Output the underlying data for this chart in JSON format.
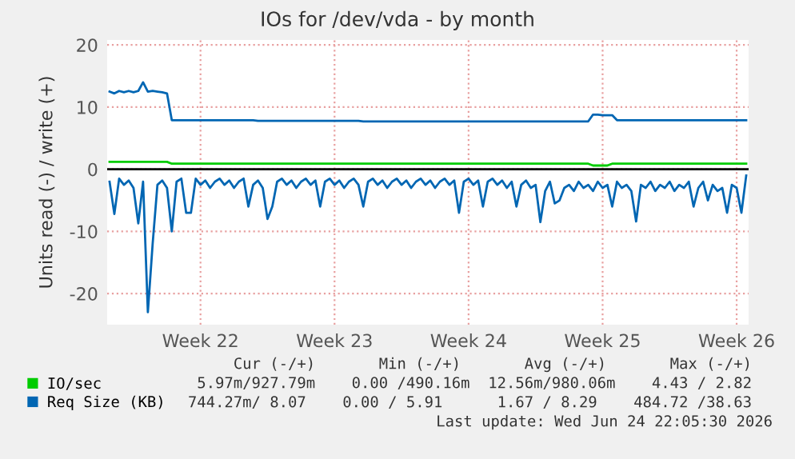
{
  "chart_data": {
    "type": "line",
    "title": "IOs for /dev/vda - by month",
    "ylabel": "Units read (-) / write (+)",
    "categories": [
      null,
      null,
      null,
      null,
      null,
      null,
      null,
      null,
      null,
      null,
      null,
      null,
      null,
      null,
      null,
      null,
      null,
      null,
      null,
      "Week 22",
      null,
      null,
      null,
      null,
      null,
      null,
      null,
      null,
      null,
      null,
      null,
      null,
      null,
      null,
      null,
      null,
      null,
      null,
      null,
      null,
      null,
      null,
      null,
      null,
      null,
      null,
      null,
      "Week 23",
      null,
      null,
      null,
      null,
      null,
      null,
      null,
      null,
      null,
      null,
      null,
      null,
      null,
      null,
      null,
      null,
      null,
      null,
      null,
      null,
      null,
      null,
      null,
      null,
      null,
      null,
      null,
      "Week 24",
      null,
      null,
      null,
      null,
      null,
      null,
      null,
      null,
      null,
      null,
      null,
      null,
      null,
      null,
      null,
      null,
      null,
      null,
      null,
      null,
      null,
      null,
      null,
      null,
      null,
      null,
      null,
      "Week 25",
      null,
      null,
      null,
      null,
      null,
      null,
      null,
      null,
      null,
      null,
      null,
      null,
      null,
      null,
      null,
      null,
      null,
      null,
      null,
      null,
      null,
      null,
      null,
      null,
      null,
      null,
      null,
      "Week 26",
      null,
      null
    ],
    "ylim": [
      -25,
      20.8
    ],
    "yticks": [
      -20,
      -10,
      0,
      10,
      20
    ],
    "grid": true,
    "legend": "bottom left",
    "ref_lines": [
      {
        "axis": "y",
        "value": 0,
        "color": "#000000"
      }
    ],
    "series": [
      {
        "name": "IO/sec",
        "color": "#00cc00",
        "values": [
          1.2,
          1.2,
          1.2,
          1.2,
          1.2,
          1.2,
          1.2,
          1.2,
          1.2,
          1.2,
          1.2,
          1.2,
          1.2,
          0.9,
          0.9,
          0.9,
          0.9,
          0.9,
          0.9,
          0.9,
          0.9,
          0.9,
          0.9,
          0.9,
          0.9,
          0.9,
          0.9,
          0.9,
          0.9,
          0.9,
          0.9,
          0.9,
          0.9,
          0.9,
          0.9,
          0.9,
          0.9,
          0.9,
          0.9,
          0.9,
          0.9,
          0.9,
          0.9,
          0.9,
          0.9,
          0.9,
          0.9,
          0.9,
          0.9,
          0.9,
          0.9,
          0.9,
          0.9,
          0.9,
          0.9,
          0.9,
          0.9,
          0.9,
          0.9,
          0.9,
          0.9,
          0.9,
          0.9,
          0.9,
          0.9,
          0.9,
          0.9,
          0.9,
          0.9,
          0.9,
          0.9,
          0.9,
          0.9,
          0.9,
          0.9,
          0.9,
          0.9,
          0.9,
          0.9,
          0.9,
          0.9,
          0.9,
          0.9,
          0.9,
          0.9,
          0.9,
          0.9,
          0.9,
          0.9,
          0.9,
          0.9,
          0.9,
          0.9,
          0.9,
          0.9,
          0.9,
          0.9,
          0.9,
          0.9,
          0.9,
          0.9,
          0.6,
          0.6,
          0.6,
          0.6,
          0.9,
          0.9,
          0.9,
          0.9,
          0.9,
          0.9,
          0.9,
          0.9,
          0.9,
          0.9,
          0.9,
          0.9,
          0.9,
          0.9,
          0.9,
          0.9,
          0.9,
          0.9,
          0.9,
          0.9,
          0.9,
          0.9,
          0.9,
          0.9,
          0.9,
          0.9,
          0.9,
          0.9,
          0.9
        ]
      },
      {
        "name": "Req Size (KB)",
        "color": "#0066b3",
        "values": [
          12.5,
          12.2,
          12.6,
          12.4,
          12.6,
          12.4,
          12.6,
          14,
          12.5,
          12.6,
          12.5,
          12.4,
          12.2,
          7.9,
          7.9,
          7.9,
          7.9,
          7.9,
          7.9,
          7.9,
          7.9,
          7.9,
          7.9,
          7.9,
          7.9,
          7.9,
          7.9,
          7.9,
          7.9,
          7.9,
          7.9,
          7.8,
          7.8,
          7.8,
          7.8,
          7.8,
          7.8,
          7.8,
          7.8,
          7.8,
          7.8,
          7.8,
          7.8,
          7.8,
          7.8,
          7.8,
          7.8,
          7.8,
          7.8,
          7.8,
          7.8,
          7.8,
          7.8,
          7.7,
          7.7,
          7.7,
          7.7,
          7.7,
          7.7,
          7.7,
          7.7,
          7.7,
          7.7,
          7.7,
          7.7,
          7.7,
          7.7,
          7.7,
          7.7,
          7.7,
          7.7,
          7.7,
          7.7,
          7.7,
          7.7,
          7.7,
          7.7,
          7.7,
          7.7,
          7.7,
          7.7,
          7.7,
          7.7,
          7.7,
          7.7,
          7.7,
          7.7,
          7.7,
          7.7,
          7.7,
          7.7,
          7.7,
          7.7,
          7.7,
          7.7,
          7.7,
          7.7,
          7.7,
          7.7,
          7.7,
          7.7,
          8.8,
          8.8,
          8.7,
          8.7,
          8.7,
          7.9,
          7.9,
          7.9,
          7.9,
          7.9,
          7.9,
          7.9,
          7.9,
          7.9,
          7.9,
          7.9,
          7.9,
          7.9,
          7.9,
          7.9,
          7.9,
          7.9,
          7.9,
          7.9,
          7.9,
          7.9,
          7.9,
          7.9,
          7.9,
          7.9,
          7.9,
          7.9,
          7.9
        ]
      },
      {
        "color": "#0066b3",
        "values": [
          -2,
          -7.2,
          -1.5,
          -2.5,
          -1.8,
          -3,
          -8.7,
          -2,
          -23,
          -12,
          -2.5,
          -1.8,
          -3,
          -10,
          -2,
          -1.5,
          -7,
          -7,
          -1.5,
          -2.5,
          -1.8,
          -3,
          -2,
          -1.5,
          -2.5,
          -1.8,
          -3,
          -2,
          -1.5,
          -6,
          -2.5,
          -1.8,
          -3,
          -8,
          -6,
          -2,
          -1.5,
          -2.5,
          -1.8,
          -3,
          -2,
          -1.5,
          -2.5,
          -1.8,
          -6,
          -2,
          -1.5,
          -2.5,
          -1.8,
          -3,
          -2,
          -1.5,
          -2.5,
          -6,
          -2,
          -1.5,
          -2.5,
          -1.8,
          -3,
          -2,
          -1.5,
          -2.5,
          -1.8,
          -3,
          -2,
          -1.5,
          -2.5,
          -1.8,
          -3,
          -2,
          -1.5,
          -2.5,
          -1.8,
          -7,
          -2,
          -1.5,
          -2.5,
          -1.8,
          -6,
          -2,
          -1.5,
          -2.5,
          -1.8,
          -3,
          -2,
          -6,
          -2.5,
          -1.8,
          -3,
          -2.5,
          -8.5,
          -3.5,
          -2,
          -5.5,
          -5,
          -3,
          -2.5,
          -3.5,
          -2,
          -3,
          -2.5,
          -3.5,
          -2,
          -3,
          -2.5,
          -6,
          -2,
          -3,
          -2.5,
          -3.5,
          -8.4,
          -2.5,
          -3,
          -2,
          -3.5,
          -2.5,
          -3,
          -2,
          -3.5,
          -2.5,
          -3,
          -2,
          -6,
          -3,
          -2,
          -5,
          -2.5,
          -3.5,
          -3,
          -7,
          -2.5,
          -3,
          -7,
          -1
        ]
      }
    ],
    "annotations": [
      "Cur (-/+)       Min (-/+)       Avg (-/+)       Max (-/+)",
      "5.97m/927.79m    0.00 /490.16m  12.56m/980.06m    4.43 / 2.82",
      "744.27m/ 8.07    0.00 / 5.91      1.67 / 8.29    484.72 /38.63",
      "Last update: Wed Jun 24 22:05:30 2026"
    ]
  }
}
